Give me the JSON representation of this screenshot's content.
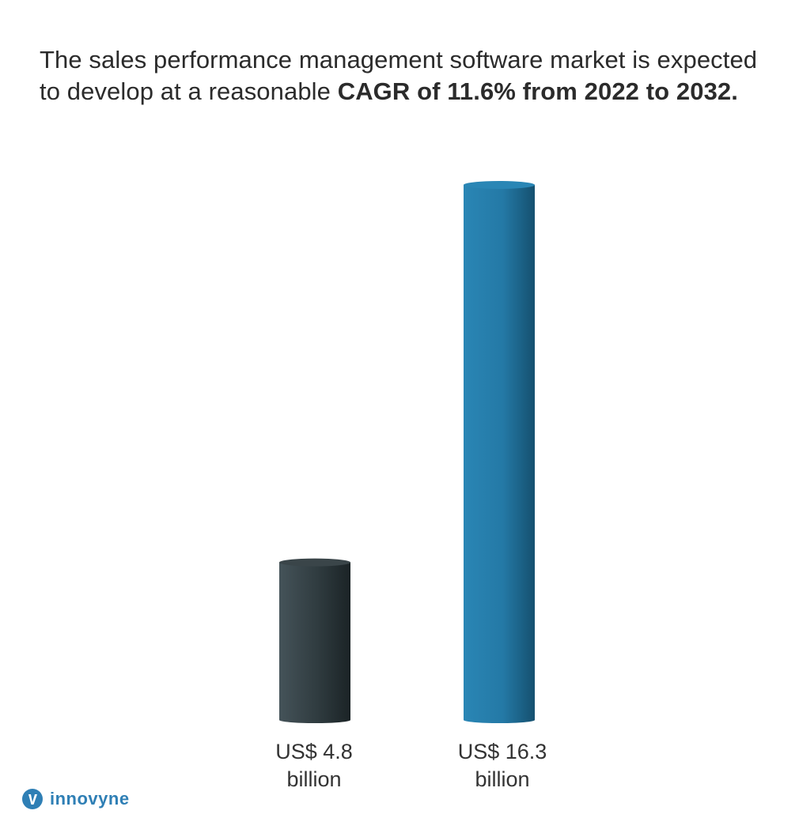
{
  "headline": {
    "part1": "The sales performance management software market is expected to develop at a reasonable ",
    "bold": "CAGR of 11.6% from 2022 to 2032."
  },
  "chart_data": {
    "type": "bar",
    "categories": [
      "US$ 4.8 billion",
      "US$ 16.3 billion"
    ],
    "values": [
      4.8,
      16.3
    ],
    "title": "",
    "xlabel": "",
    "ylabel": "",
    "colors": [
      "#2f3b40",
      "#2a84b3"
    ],
    "grid": false
  },
  "labels": {
    "bar1_line1": "US$ 4.8",
    "bar1_line2": "billion",
    "bar2_line1": "US$ 16.3",
    "bar2_line2": "billion"
  },
  "brand": {
    "name": "innovyne",
    "color": "#2f7fb5"
  }
}
